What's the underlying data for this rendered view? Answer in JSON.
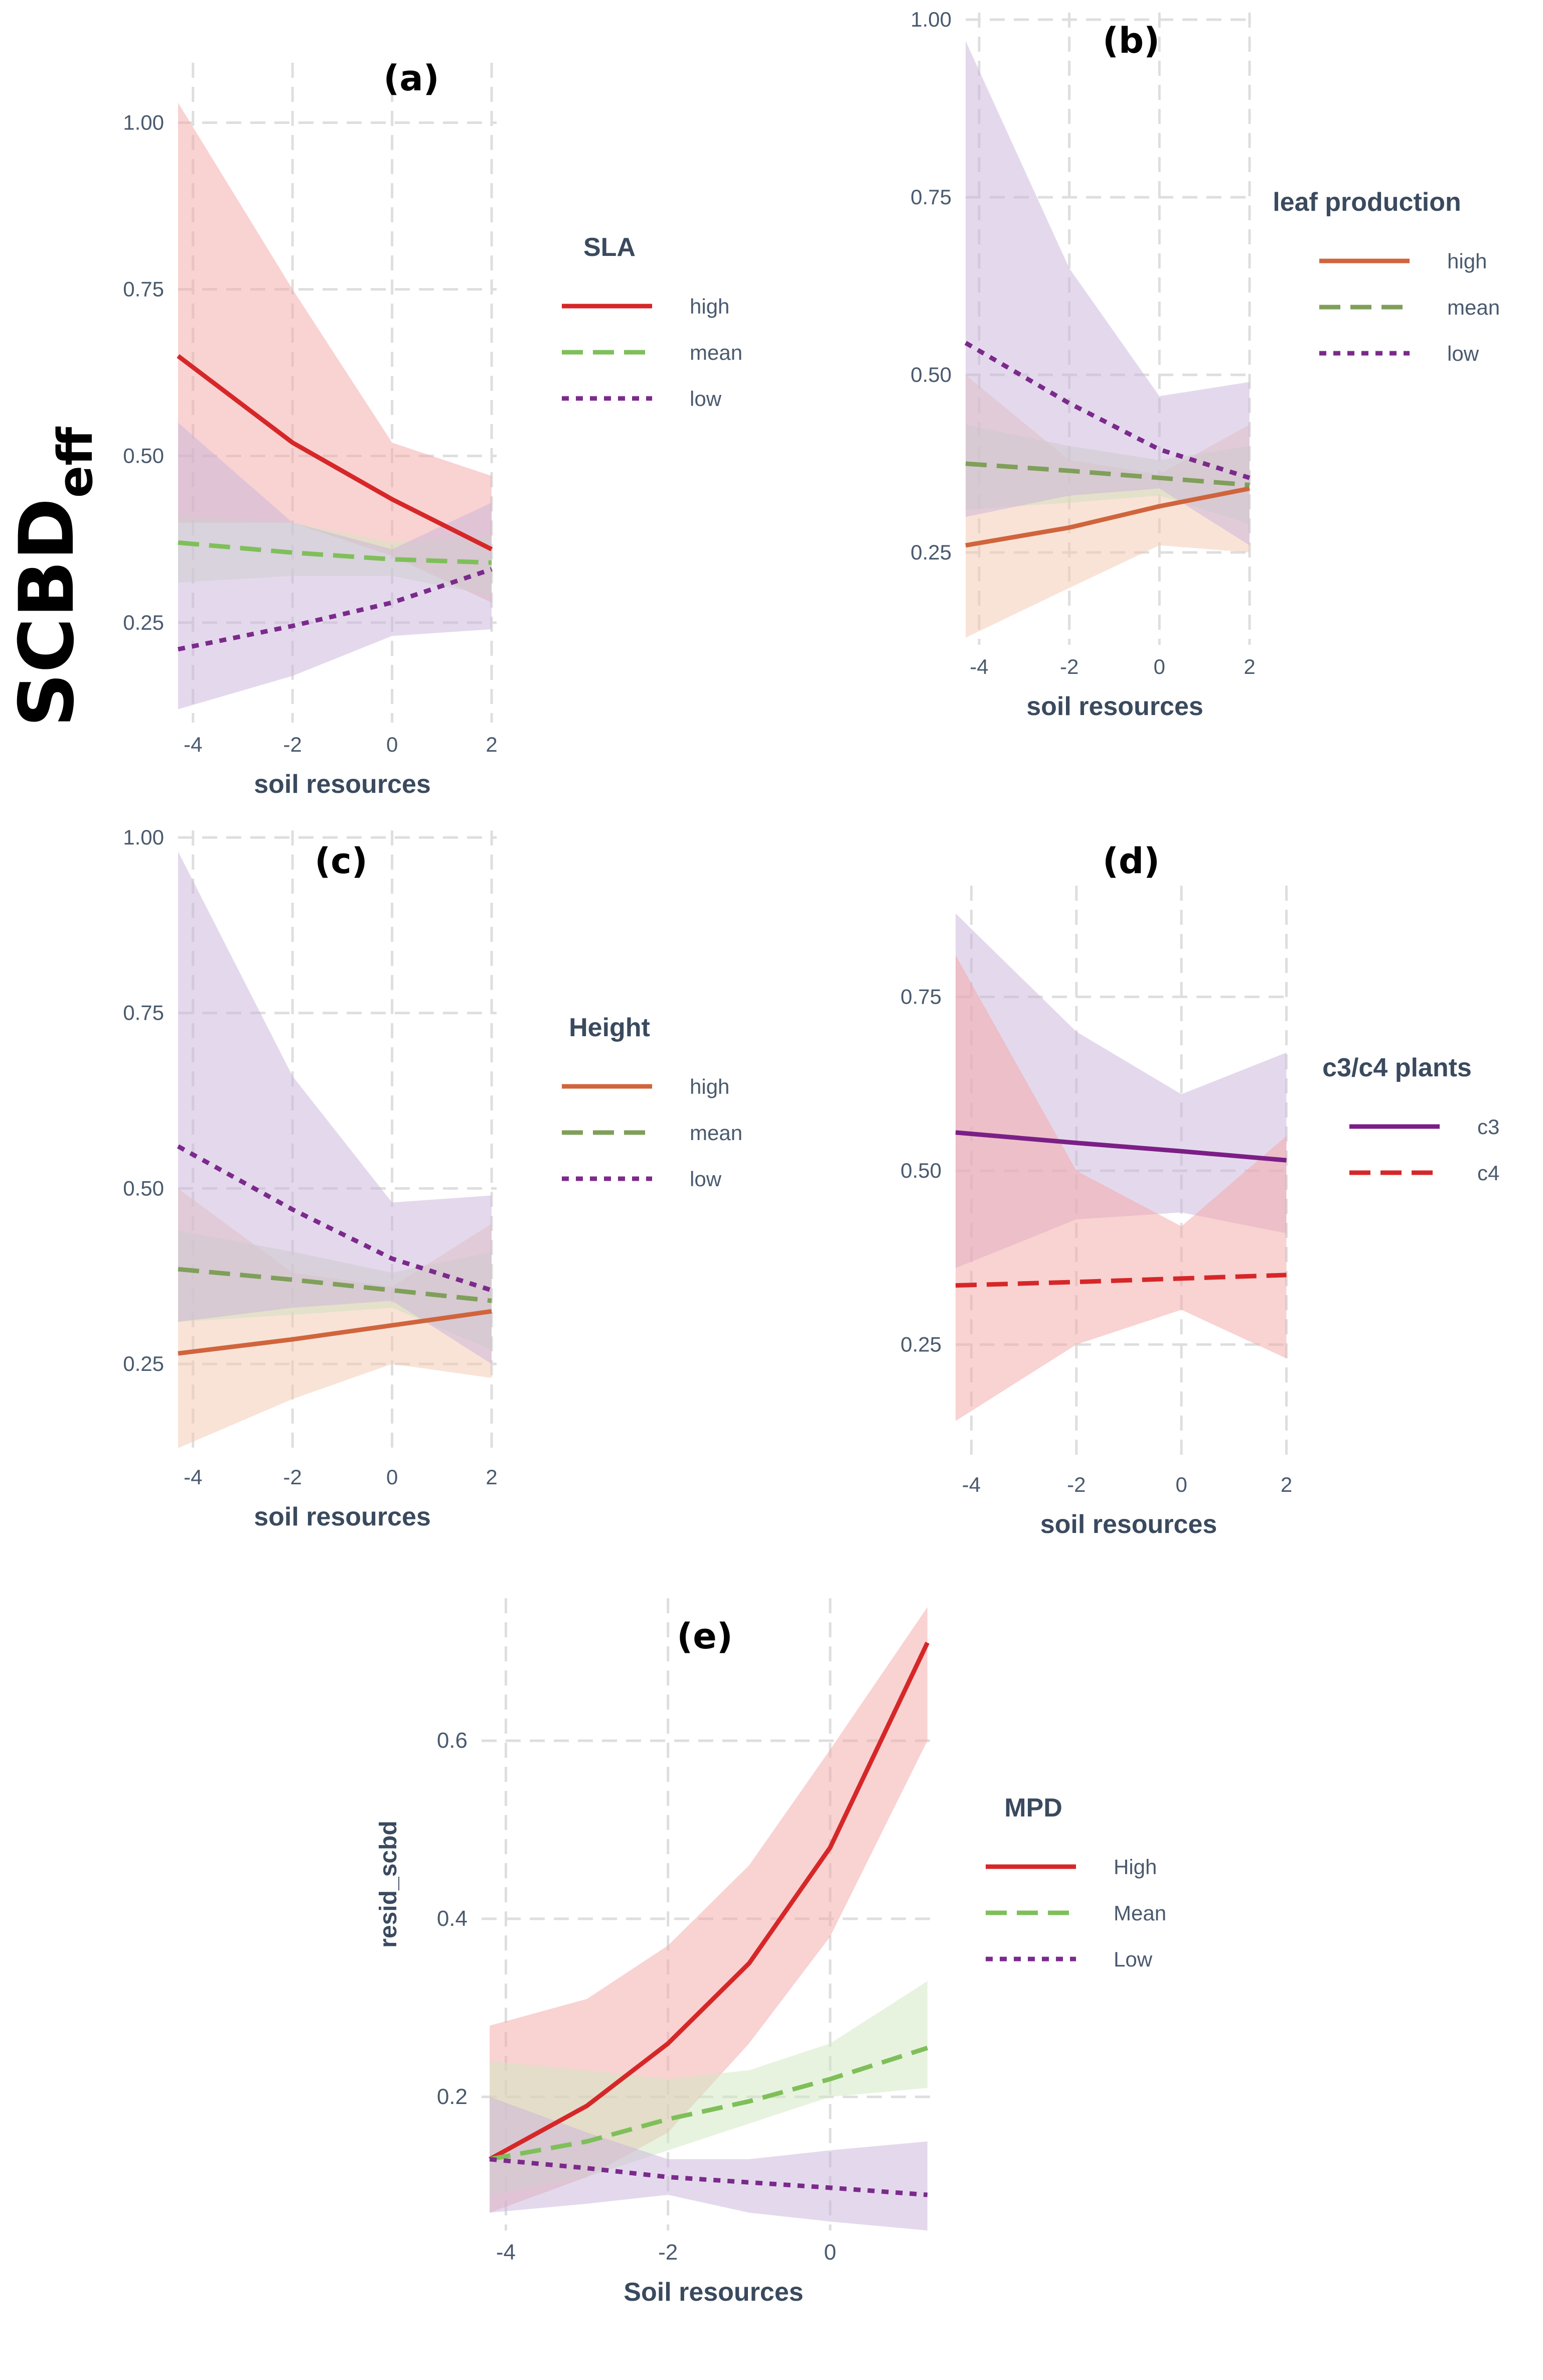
{
  "figure": {
    "ylabel_main": "SCBD",
    "ylabel_sub": "eff"
  },
  "chart_data": [
    {
      "id": "a",
      "type": "line",
      "panel_label": "(a)",
      "xlabel": "soil resources",
      "ylabel": "",
      "xlim": [
        -4.3,
        2.1
      ],
      "ylim": [
        0.1,
        1.09
      ],
      "xticks": [
        -4,
        -2,
        0,
        2
      ],
      "yticks": [
        0.25,
        0.5,
        0.75,
        1.0
      ],
      "ytick_labels": [
        "0.25",
        "0.50",
        "0.75",
        "1.00"
      ],
      "legend_title": "SLA",
      "series": [
        {
          "name": "high",
          "color": "#d62728",
          "fill": "#f4a6a6",
          "dash": "solid",
          "x": [
            -4.3,
            -2,
            0,
            2
          ],
          "y": [
            0.65,
            0.52,
            0.435,
            0.36
          ],
          "lower": [
            0.4,
            0.4,
            0.35,
            0.28
          ],
          "upper": [
            1.03,
            0.75,
            0.52,
            0.47
          ]
        },
        {
          "name": "mean",
          "color": "#7fbf5a",
          "fill": "#cfe8c0",
          "dash": "dash",
          "x": [
            -4.3,
            -2,
            0,
            2
          ],
          "y": [
            0.37,
            0.355,
            0.345,
            0.34
          ],
          "lower": [
            0.31,
            0.32,
            0.32,
            0.29
          ],
          "upper": [
            0.41,
            0.4,
            0.37,
            0.38
          ]
        },
        {
          "name": "low",
          "color": "#7b2a8c",
          "fill": "#c9b3da",
          "dash": "dot",
          "x": [
            -4.3,
            -2,
            0,
            2
          ],
          "y": [
            0.21,
            0.245,
            0.28,
            0.33
          ],
          "lower": [
            0.12,
            0.17,
            0.23,
            0.24
          ],
          "upper": [
            0.55,
            0.4,
            0.36,
            0.43
          ]
        }
      ]
    },
    {
      "id": "b",
      "type": "line",
      "panel_label": "(b)",
      "xlabel": "soil resources",
      "ylabel": "",
      "xlim": [
        -4.3,
        2.1
      ],
      "ylim": [
        0.12,
        1.01
      ],
      "xticks": [
        -4,
        -2,
        0,
        2
      ],
      "yticks": [
        0.25,
        0.5,
        0.75,
        1.0
      ],
      "ytick_labels": [
        "0.25",
        "0.50",
        "0.75",
        "1.00"
      ],
      "legend_title": "leaf production",
      "series": [
        {
          "name": "high",
          "color": "#d0643c",
          "fill": "#f3c7b0",
          "dash": "solid",
          "x": [
            -4.3,
            -2,
            0,
            2
          ],
          "y": [
            0.26,
            0.285,
            0.315,
            0.34
          ],
          "lower": [
            0.13,
            0.2,
            0.26,
            0.25
          ],
          "upper": [
            0.5,
            0.38,
            0.36,
            0.43
          ]
        },
        {
          "name": "mean",
          "color": "#7f9f5a",
          "fill": "#cfe0c0",
          "dash": "dash",
          "x": [
            -4.3,
            -2,
            0,
            2
          ],
          "y": [
            0.375,
            0.365,
            0.355,
            0.345
          ],
          "lower": [
            0.31,
            0.32,
            0.33,
            0.29
          ],
          "upper": [
            0.43,
            0.4,
            0.38,
            0.4
          ]
        },
        {
          "name": "low",
          "color": "#7b2a8c",
          "fill": "#c9b3da",
          "dash": "dot",
          "x": [
            -4.3,
            -2,
            0,
            2
          ],
          "y": [
            0.545,
            0.46,
            0.395,
            0.355
          ],
          "lower": [
            0.3,
            0.33,
            0.34,
            0.26
          ],
          "upper": [
            0.97,
            0.65,
            0.47,
            0.49
          ]
        }
      ]
    },
    {
      "id": "c",
      "type": "line",
      "panel_label": "(c)",
      "xlabel": "soil resources",
      "ylabel": "",
      "xlim": [
        -4.3,
        2.1
      ],
      "ylim": [
        0.12,
        1.01
      ],
      "xticks": [
        -4,
        -2,
        0,
        2
      ],
      "yticks": [
        0.25,
        0.5,
        0.75,
        1.0
      ],
      "ytick_labels": [
        "0.25",
        "0.50",
        "0.75",
        "1.00"
      ],
      "legend_title": "Height",
      "series": [
        {
          "name": "high",
          "color": "#d0643c",
          "fill": "#f3c7b0",
          "dash": "solid",
          "x": [
            -4.3,
            -2,
            0,
            2
          ],
          "y": [
            0.265,
            0.285,
            0.305,
            0.325
          ],
          "lower": [
            0.13,
            0.2,
            0.25,
            0.23
          ],
          "upper": [
            0.5,
            0.38,
            0.36,
            0.45
          ]
        },
        {
          "name": "mean",
          "color": "#7f9f5a",
          "fill": "#cfe0c0",
          "dash": "dash",
          "x": [
            -4.3,
            -2,
            0,
            2
          ],
          "y": [
            0.385,
            0.37,
            0.355,
            0.34
          ],
          "lower": [
            0.31,
            0.32,
            0.33,
            0.27
          ],
          "upper": [
            0.44,
            0.41,
            0.38,
            0.41
          ]
        },
        {
          "name": "low",
          "color": "#7b2a8c",
          "fill": "#c9b3da",
          "dash": "dot",
          "x": [
            -4.3,
            -2,
            0,
            2
          ],
          "y": [
            0.56,
            0.47,
            0.4,
            0.355
          ],
          "lower": [
            0.31,
            0.33,
            0.34,
            0.25
          ],
          "upper": [
            0.98,
            0.66,
            0.48,
            0.49
          ]
        }
      ]
    },
    {
      "id": "d",
      "type": "line",
      "panel_label": "(d)",
      "xlabel": "soil resources",
      "ylabel": "",
      "xlim": [
        -4.3,
        2.1
      ],
      "ylim": [
        0.08,
        0.91
      ],
      "xticks": [
        -4,
        -2,
        0,
        2
      ],
      "yticks": [
        0.25,
        0.5,
        0.75
      ],
      "ytick_labels": [
        "0.25",
        "0.50",
        "0.75"
      ],
      "legend_title": "c3/c4 plants",
      "series": [
        {
          "name": "c3",
          "color": "#7b1f86",
          "fill": "#c9b3da",
          "dash": "solid",
          "x": [
            -4.3,
            -2,
            0,
            2
          ],
          "y": [
            0.555,
            0.54,
            0.528,
            0.515
          ],
          "lower": [
            0.36,
            0.43,
            0.44,
            0.41
          ],
          "upper": [
            0.87,
            0.7,
            0.61,
            0.67
          ]
        },
        {
          "name": "c4",
          "color": "#d62728",
          "fill": "#f4a6a6",
          "dash": "dash",
          "x": [
            -4.3,
            -2,
            0,
            2
          ],
          "y": [
            0.335,
            0.34,
            0.345,
            0.35
          ],
          "lower": [
            0.14,
            0.25,
            0.3,
            0.23
          ],
          "upper": [
            0.81,
            0.5,
            0.42,
            0.55
          ]
        }
      ]
    },
    {
      "id": "e",
      "type": "line",
      "panel_label": "(e)",
      "xlabel": "Soil resources",
      "ylabel": "resid_scbd",
      "xlim": [
        -4.3,
        1.3
      ],
      "ylim": [
        0.05,
        0.76
      ],
      "xticks": [
        -4,
        -2,
        0
      ],
      "yticks": [
        0.2,
        0.4,
        0.6
      ],
      "ytick_labels": [
        "0.2",
        "0.4",
        "0.6"
      ],
      "legend_title": "MPD",
      "series": [
        {
          "name": "High",
          "color": "#d62728",
          "fill": "#f4a6a6",
          "dash": "solid",
          "x": [
            -4.2,
            -3,
            -2,
            -1,
            0,
            1.2
          ],
          "y": [
            0.13,
            0.19,
            0.26,
            0.35,
            0.48,
            0.71
          ],
          "lower": [
            0.07,
            0.11,
            0.16,
            0.26,
            0.38,
            0.6
          ],
          "upper": [
            0.28,
            0.31,
            0.37,
            0.46,
            0.59,
            0.75
          ]
        },
        {
          "name": "Mean",
          "color": "#7fbf5a",
          "fill": "#cfe8c0",
          "dash": "dash",
          "x": [
            -4.2,
            -3,
            -2,
            -1,
            0,
            1.2
          ],
          "y": [
            0.13,
            0.15,
            0.175,
            0.195,
            0.22,
            0.255
          ],
          "lower": [
            0.09,
            0.11,
            0.14,
            0.17,
            0.2,
            0.21
          ],
          "upper": [
            0.24,
            0.23,
            0.22,
            0.23,
            0.26,
            0.33
          ]
        },
        {
          "name": "Low",
          "color": "#7b2a8c",
          "fill": "#c9b3da",
          "dash": "dot",
          "x": [
            -4.2,
            -3,
            -2,
            -1,
            0,
            1.2
          ],
          "y": [
            0.13,
            0.12,
            0.11,
            0.104,
            0.098,
            0.09
          ],
          "lower": [
            0.07,
            0.08,
            0.09,
            0.07,
            0.06,
            0.05
          ],
          "upper": [
            0.2,
            0.16,
            0.13,
            0.13,
            0.14,
            0.15
          ]
        }
      ]
    }
  ]
}
